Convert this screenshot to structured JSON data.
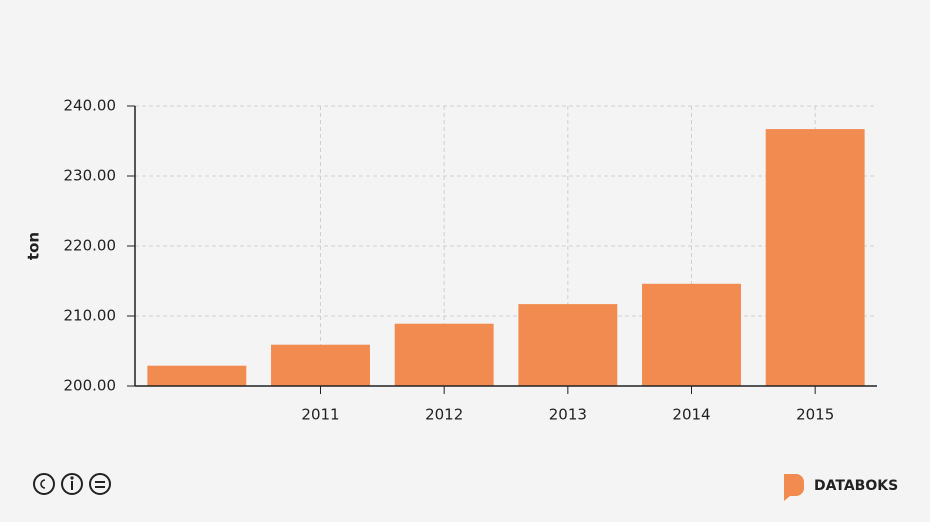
{
  "chart_data": {
    "type": "bar",
    "y_label": "ton",
    "categories": [
      null,
      "2011",
      "2012",
      "2013",
      "2014",
      "2015"
    ],
    "values": [
      202.9,
      205.9,
      208.9,
      211.7,
      214.6,
      236.7
    ],
    "color": "#f28b4f",
    "ylim": [
      200,
      240
    ],
    "yticks": [
      {
        "value": 200,
        "label": "200.00"
      },
      {
        "value": 210,
        "label": "210.00"
      },
      {
        "value": 220,
        "label": "220.00"
      },
      {
        "value": 230,
        "label": "230.00"
      },
      {
        "value": 240,
        "label": "240.00"
      }
    ],
    "grid": true
  },
  "footer": {
    "brand": "DATABOKS"
  }
}
